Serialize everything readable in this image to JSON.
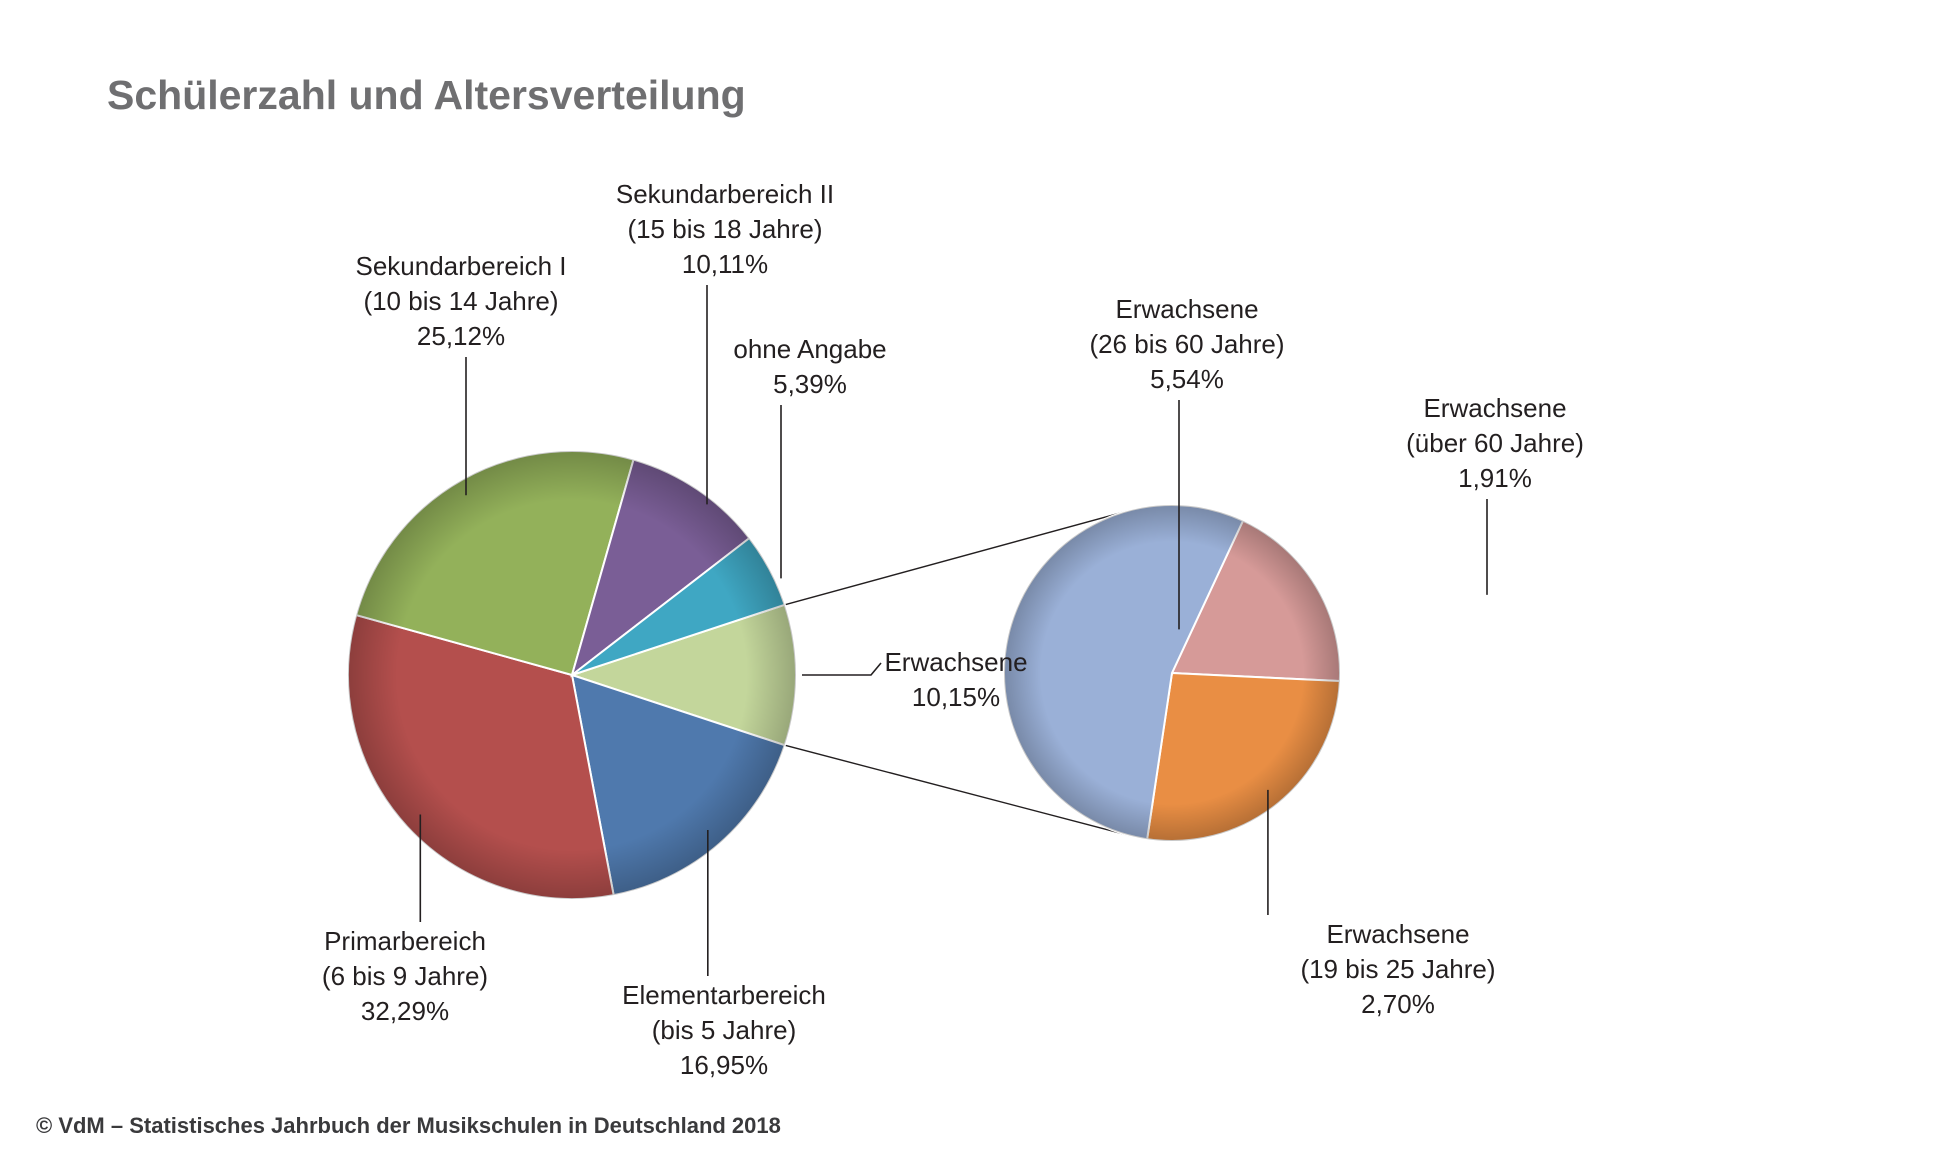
{
  "title": "Schülerzahl und Altersverteilung",
  "source": "© VdM – Statistisches Jahrbuch der Musikschulen in Deutschland 2018",
  "chart_data": [
    {
      "type": "pie",
      "slices": [
        {
          "key": "erwachsene",
          "lines": [
            "Erwachsene"
          ],
          "value_label": "10,15%",
          "value": 10.15,
          "color": "#c3d69b"
        },
        {
          "key": "elementar",
          "lines": [
            "Elementarbereich",
            "(bis 5 Jahre)"
          ],
          "value_label": "16,95%",
          "value": 16.95,
          "color": "#4f79ad"
        },
        {
          "key": "primar",
          "lines": [
            "Primarbereich",
            "(6 bis 9 Jahre)"
          ],
          "value_label": "32,29%",
          "value": 32.29,
          "color": "#b44f4d"
        },
        {
          "key": "sek1",
          "lines": [
            "Sekundarbereich I",
            "(10 bis 14 Jahre)"
          ],
          "value_label": "25,12%",
          "value": 25.12,
          "color": "#93b15a"
        },
        {
          "key": "sek2",
          "lines": [
            "Sekundarbereich II",
            "(15 bis 18 Jahre)"
          ],
          "value_label": "10,11%",
          "value": 10.11,
          "color": "#7a5e96"
        },
        {
          "key": "ohne",
          "lines": [
            "ohne Angabe"
          ],
          "value_label": "5,39%",
          "value": 5.39,
          "color": "#3fa7c3"
        }
      ]
    },
    {
      "type": "pie",
      "slices": [
        {
          "key": "e60",
          "lines": [
            "Erwachsene",
            "(über 60 Jahre)"
          ],
          "value_label": "1,91%",
          "value": 1.91,
          "color": "#d69a98"
        },
        {
          "key": "e19",
          "lines": [
            "Erwachsene",
            "(19 bis 25 Jahre)"
          ],
          "value_label": "2,70%",
          "value": 2.7,
          "color": "#e98e44"
        },
        {
          "key": "e26",
          "lines": [
            "Erwachsene",
            "(26 bis 60 Jahre)"
          ],
          "value_label": "5,54%",
          "value": 5.54,
          "color": "#9ab0d7"
        }
      ]
    }
  ]
}
